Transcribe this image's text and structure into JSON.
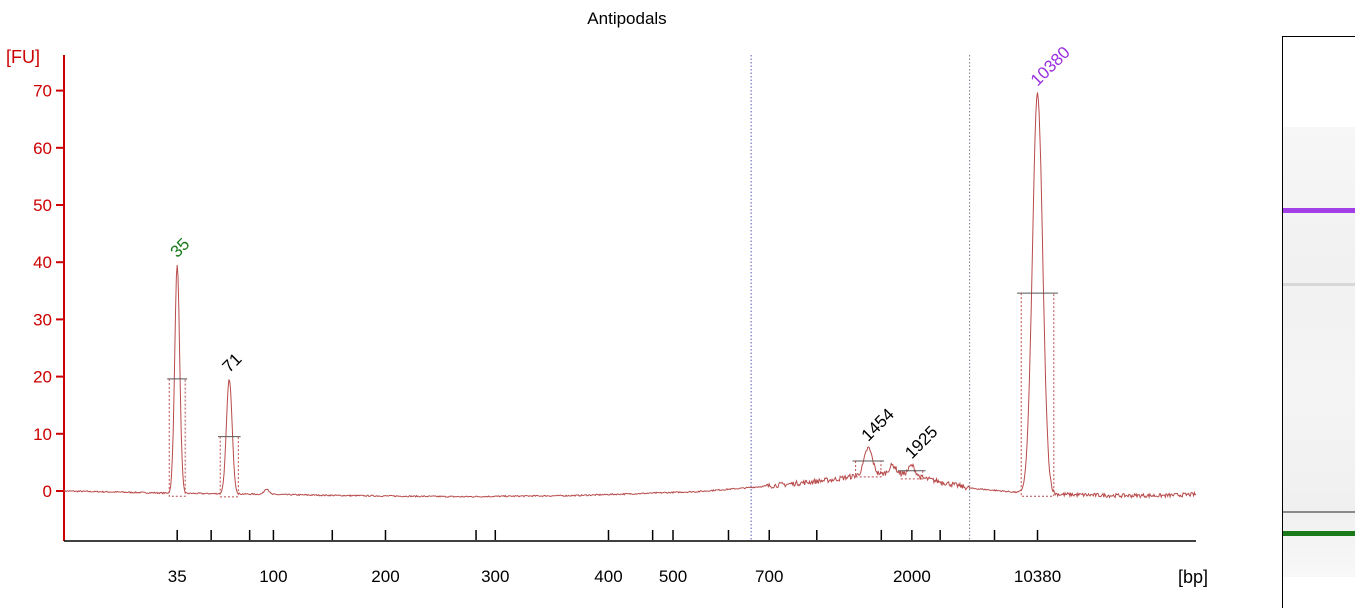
{
  "colors": {
    "axis": "#cc0000",
    "trace": "#b84a4a",
    "marker_lower": "#1a7a1a",
    "marker_upper": "#9b30e0",
    "peak_label": "#000000",
    "region_line": "#5a5ab4",
    "region_line_2": "#7a7a8a"
  },
  "chart_data": {
    "type": "line",
    "title": "Antipodals",
    "ylabel": "[FU]",
    "xlabel": "[bp]",
    "ylim": [
      -9,
      77
    ],
    "yticks": [
      0,
      10,
      20,
      30,
      40,
      50,
      60,
      70
    ],
    "xticks": [
      {
        "label": "35",
        "pos": 0.1
      },
      {
        "label": "",
        "pos": 0.13
      },
      {
        "label": "",
        "pos": 0.164
      },
      {
        "label": "100",
        "pos": 0.185
      },
      {
        "label": "",
        "pos": 0.237
      },
      {
        "label": "200",
        "pos": 0.284
      },
      {
        "label": "",
        "pos": 0.364
      },
      {
        "label": "300",
        "pos": 0.381
      },
      {
        "label": "400",
        "pos": 0.481
      },
      {
        "label": "",
        "pos": 0.52
      },
      {
        "label": "500",
        "pos": 0.538
      },
      {
        "label": "",
        "pos": 0.587
      },
      {
        "label": "700",
        "pos": 0.623
      },
      {
        "label": "",
        "pos": 0.665
      },
      {
        "label": "",
        "pos": 0.722
      },
      {
        "label": "2000",
        "pos": 0.749
      },
      {
        "label": "",
        "pos": 0.774
      },
      {
        "label": "",
        "pos": 0.822
      },
      {
        "label": "10380",
        "pos": 0.86
      }
    ],
    "baseline": [
      [
        0.0,
        0.0
      ],
      [
        0.1,
        -0.4
      ],
      [
        0.15,
        -0.5
      ],
      [
        0.25,
        -0.8
      ],
      [
        0.35,
        -1.0
      ],
      [
        0.45,
        -0.8
      ],
      [
        0.5,
        -0.5
      ],
      [
        0.56,
        -0.1
      ],
      [
        0.6,
        0.5
      ],
      [
        0.64,
        1.2
      ],
      [
        0.68,
        2.0
      ],
      [
        0.71,
        3.0
      ],
      [
        0.74,
        3.0
      ],
      [
        0.765,
        2.0
      ],
      [
        0.8,
        0.5
      ],
      [
        0.84,
        -0.2
      ],
      [
        0.88,
        -0.6
      ],
      [
        0.93,
        -0.8
      ],
      [
        0.97,
        -0.8
      ],
      [
        1.0,
        -0.6
      ]
    ],
    "peaks": [
      {
        "label": "35",
        "x": 0.1,
        "height": 40,
        "width": 0.0022,
        "role": "marker_lower"
      },
      {
        "label": "71",
        "x": 0.146,
        "height": 20,
        "width": 0.0025,
        "role": "peak"
      },
      {
        "label": "",
        "x": 0.179,
        "height": 1,
        "width": 0.002,
        "role": "none"
      },
      {
        "label": "1454",
        "x": 0.7105,
        "height": 4.5,
        "width": 0.0035,
        "role": "peak"
      },
      {
        "label": "",
        "x": 0.732,
        "height": 1.5,
        "width": 0.003,
        "role": "none"
      },
      {
        "label": "1925",
        "x": 0.749,
        "height": 1.8,
        "width": 0.003,
        "role": "peak"
      },
      {
        "label": "10380",
        "x": 0.86,
        "height": 70,
        "width": 0.0045,
        "role": "marker_upper"
      }
    ],
    "region_lines": [
      0.607,
      0.8
    ],
    "gel_bands": [
      {
        "pos": 0.3,
        "color": "#a23fe6",
        "thickness": 5
      },
      {
        "pos": 0.43,
        "color": "#d8d8d8",
        "thickness": 3
      },
      {
        "pos": 0.83,
        "color": "#8a8a8a",
        "thickness": 2
      },
      {
        "pos": 0.865,
        "color": "#1a7a1a",
        "thickness": 5
      }
    ]
  }
}
